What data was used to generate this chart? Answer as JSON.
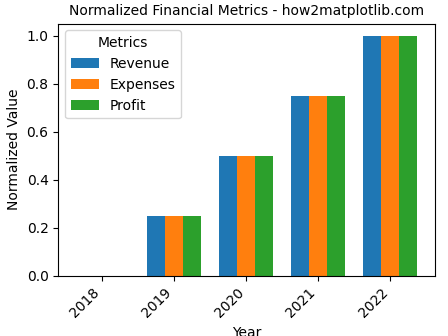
{
  "years": [
    2018,
    2019,
    2020,
    2021,
    2022
  ],
  "revenue": [
    0.0,
    0.25,
    0.5,
    0.75,
    1.0
  ],
  "expenses": [
    0.0,
    0.25,
    0.5,
    0.75,
    1.0
  ],
  "profit": [
    0.0,
    0.25,
    0.5,
    0.75,
    1.0
  ],
  "colors": {
    "Revenue": "#1f77b4",
    "Expenses": "#ff7f0e",
    "Profit": "#2ca02c"
  },
  "title": "Normalized Financial Metrics - how2matplotlib.com",
  "ylabel": "Normalized Value",
  "xlabel": "Year",
  "legend_title": "Metrics",
  "ylim": [
    0,
    1.05
  ],
  "bar_width": 0.25,
  "title_fontsize": 10
}
